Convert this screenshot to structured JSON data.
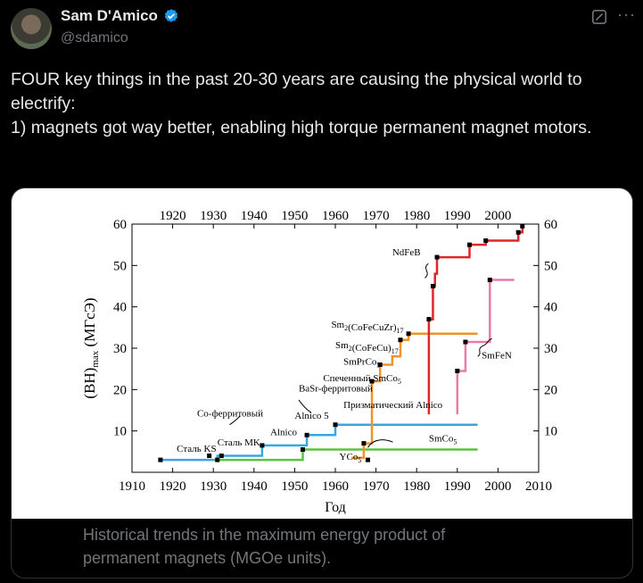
{
  "author": {
    "name": "Sam D'Amico",
    "handle": "@sdamico"
  },
  "tweet": {
    "lines": [
      "FOUR key things in the past 20-30 years are causing the physical world to electrify:",
      "1) magnets got way better, enabling high torque permanent magnet motors."
    ]
  },
  "caption": {
    "line1": "Historical trends in the maximum energy product of",
    "line2": "permanent magnets (MGOe units)."
  },
  "colors": {
    "verified": "#1d9bf0",
    "red": "#e0262b",
    "orange": "#f4922a",
    "blue": "#3aa6e0",
    "green": "#5cc244",
    "pink": "#ec7aa8"
  },
  "chart_data": {
    "type": "line",
    "xlabel": "Год",
    "ylabel_main": "(BH)",
    "ylabel_sub": "max",
    "ylabel_unit": "(МГсЭ)",
    "xlim": [
      1910,
      2010
    ],
    "ylim": [
      0,
      60
    ],
    "x_ticks_bottom": [
      1910,
      1920,
      1930,
      1940,
      1950,
      1960,
      1970,
      1980,
      1990,
      2000,
      2010
    ],
    "x_ticks_top": [
      1920,
      1930,
      1940,
      1950,
      1960,
      1970,
      1980,
      1990,
      2000
    ],
    "y_ticks": [
      10,
      20,
      30,
      40,
      50,
      60
    ],
    "series": [
      {
        "color": "blue",
        "points": [
          [
            1917,
            3
          ],
          [
            1931,
            3
          ],
          [
            1931,
            4
          ],
          [
            1942,
            4
          ],
          [
            1942,
            6.5
          ],
          [
            1953,
            6.5
          ],
          [
            1953,
            9
          ],
          [
            1960,
            9
          ],
          [
            1960,
            11.5
          ],
          [
            1995,
            11.5
          ]
        ]
      },
      {
        "color": "green",
        "points": [
          [
            1930,
            3
          ],
          [
            1952,
            3
          ],
          [
            1952,
            5.5
          ],
          [
            1995,
            5.5
          ]
        ]
      },
      {
        "color": "orange",
        "points": [
          [
            1964,
            3.5
          ],
          [
            1967,
            3.5
          ],
          [
            1967,
            7
          ],
          [
            1969,
            7
          ],
          [
            1969,
            22
          ],
          [
            1971,
            22
          ],
          [
            1971,
            26
          ],
          [
            1974,
            26
          ],
          [
            1974,
            28
          ],
          [
            1976,
            28
          ],
          [
            1976,
            32
          ],
          [
            1978,
            32
          ],
          [
            1978,
            33.5
          ],
          [
            1995,
            33.5
          ]
        ]
      },
      {
        "color": "red",
        "points": [
          [
            1983,
            14
          ],
          [
            1983,
            37
          ],
          [
            1984,
            37
          ],
          [
            1984,
            45
          ],
          [
            1984.5,
            45
          ],
          [
            1984.5,
            48
          ],
          [
            1985,
            48
          ],
          [
            1985,
            52
          ],
          [
            1993,
            52
          ],
          [
            1993,
            55
          ],
          [
            1997,
            55
          ],
          [
            1997,
            56
          ],
          [
            2005,
            56
          ],
          [
            2005,
            58
          ],
          [
            2006,
            58
          ],
          [
            2006,
            59.5
          ]
        ]
      },
      {
        "color": "pink",
        "points": [
          [
            1990,
            14
          ],
          [
            1990,
            24.5
          ],
          [
            1992,
            24.5
          ],
          [
            1992,
            31.5
          ],
          [
            1998,
            31.5
          ],
          [
            1998,
            46.5
          ],
          [
            2004,
            46.5
          ]
        ]
      }
    ],
    "markers": [
      [
        1917,
        3
      ],
      [
        1929,
        4
      ],
      [
        1932,
        4
      ],
      [
        1931,
        3
      ],
      [
        1942,
        6.5
      ],
      [
        1952,
        5.5
      ],
      [
        1953,
        9
      ],
      [
        1960,
        11.5
      ],
      [
        1968,
        3
      ],
      [
        1967,
        7
      ],
      [
        1969,
        22
      ],
      [
        1971,
        26
      ],
      [
        1976,
        32
      ],
      [
        1978,
        33.5
      ],
      [
        1983,
        37
      ],
      [
        1984,
        45
      ],
      [
        1985,
        52
      ],
      [
        1993,
        55
      ],
      [
        1997,
        56
      ],
      [
        2005,
        58
      ],
      [
        2006,
        59.5
      ],
      [
        1990,
        24.5
      ],
      [
        1992,
        31.5
      ],
      [
        1998,
        46.5
      ]
    ],
    "annotations": [
      {
        "id": "steel-ks",
        "text": "Сталь KS",
        "x": 1921,
        "y": 5
      },
      {
        "id": "steel-mk",
        "text": "Сталь MK",
        "x": 1931,
        "y": 6.5
      },
      {
        "id": "co-ferrite",
        "text": "Co-ферритовый",
        "x": 1926,
        "y": 13.5
      },
      {
        "id": "alnico",
        "text": "Alnico",
        "x": 1944,
        "y": 9
      },
      {
        "id": "basr",
        "text": "BaSr-ферритовый",
        "x": 1951,
        "y": 19.5
      },
      {
        "id": "prizm-alnico",
        "text": "Призматический Alnico",
        "x": 1962,
        "y": 15.5
      },
      {
        "id": "alnico5",
        "text": "Alnico 5",
        "x": 1950,
        "y": 13
      },
      {
        "id": "yco5",
        "text": "YCo",
        "x": 1961,
        "y": 3
      },
      {
        "id": "smco5",
        "text": "SmCo",
        "x": 1983,
        "y": 7.5
      },
      {
        "id": "sintered-smco5",
        "text": "Спеченный SmCo",
        "x": 1957,
        "y": 22
      },
      {
        "id": "smprco5",
        "text": "SmPrCo",
        "x": 1962,
        "y": 26
      },
      {
        "id": "sm2cofecu",
        "text": "Sm",
        "x": 1960,
        "y": 30
      },
      {
        "id": "sm2cofecuzr",
        "text": "Sm",
        "x": 1959,
        "y": 35
      },
      {
        "id": "ndfeb",
        "text": "NdFeB",
        "x": 1974,
        "y": 52.5
      },
      {
        "id": "smfen",
        "text": "SmFeN",
        "x": 1996,
        "y": 27.5
      }
    ],
    "annotation_parts": {
      "sub5": "5",
      "sub17": "17",
      "sm2": "2",
      "cofecu": "(CoFeCu)",
      "cofecuzr": "(CoFeCuZr)"
    }
  }
}
